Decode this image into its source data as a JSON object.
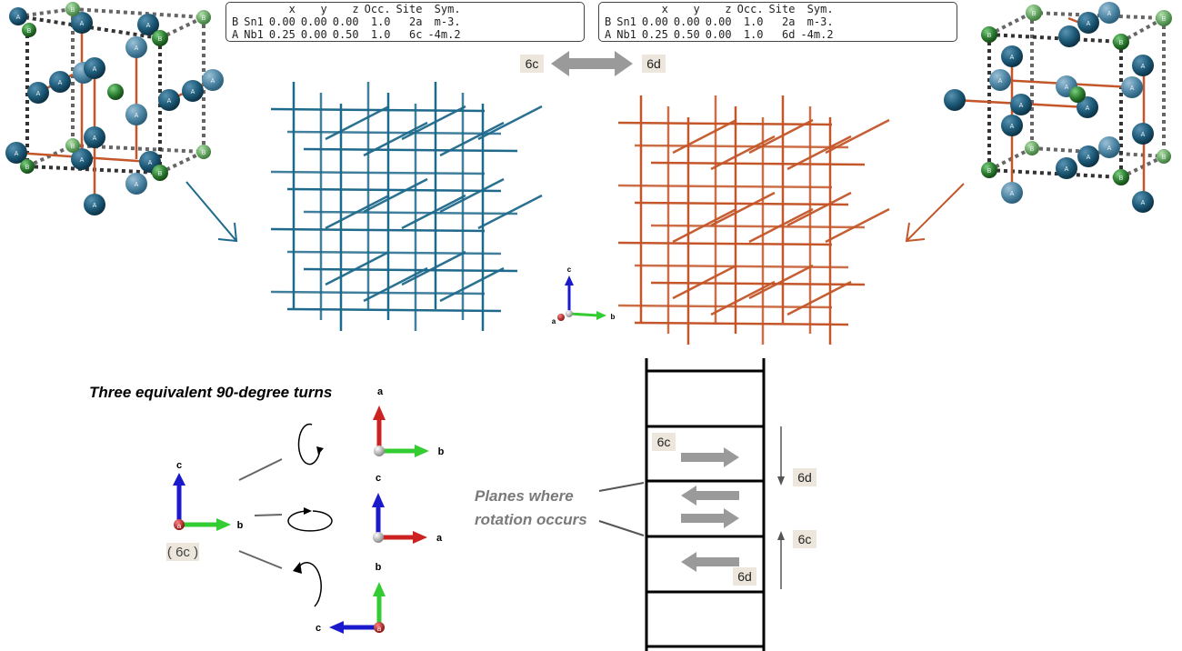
{
  "tables": [
    {
      "headers": [
        "",
        "",
        "x",
        "y",
        "z",
        "Occ.",
        "Site",
        "Sym."
      ],
      "rows": [
        [
          "B",
          "Sn1",
          "0.00",
          "0.00",
          "0.00",
          "1.0",
          "2a",
          "m-3."
        ],
        [
          "A",
          "Nb1",
          "0.25",
          "0.00",
          "0.50",
          "1.0",
          "6c",
          "-4m.2"
        ]
      ]
    },
    {
      "headers": [
        "",
        "",
        "x",
        "y",
        "z",
        "Occ.",
        "Site",
        "Sym."
      ],
      "rows": [
        [
          "B",
          "Sn1",
          "0.00",
          "0.00",
          "0.00",
          "1.0",
          "2a",
          "m-3."
        ],
        [
          "A",
          "Nb1",
          "0.25",
          "0.50",
          "0.00",
          "1.0",
          "6d",
          "-4m.2"
        ]
      ]
    }
  ],
  "top_arrow": {
    "left_label": "6c",
    "right_label": "6d"
  },
  "atom_labels": {
    "a_atom": "A",
    "b_atom": "B"
  },
  "axes_labels": {
    "a": "a",
    "b": "b",
    "c": "c"
  },
  "rotation": {
    "title": "Three equivalent 90-degree turns",
    "site_label": "( 6c )"
  },
  "planes": {
    "caption_line1": "Planes where",
    "caption_line2": "rotation occurs",
    "labels": {
      "top_left": "6c",
      "right_upper": "6d",
      "right_lower": "6c",
      "bottom": "6d"
    }
  },
  "colors": {
    "blue_lattice": "#1f6a8c",
    "orange_lattice": "#c4562a",
    "atom_a": "#1d5a78",
    "atom_b": "#2e7d32",
    "axis_a": "#cc2222",
    "axis_b": "#33cc33",
    "axis_c": "#1a1acc",
    "arrow_gray": "#9a9a9a"
  }
}
